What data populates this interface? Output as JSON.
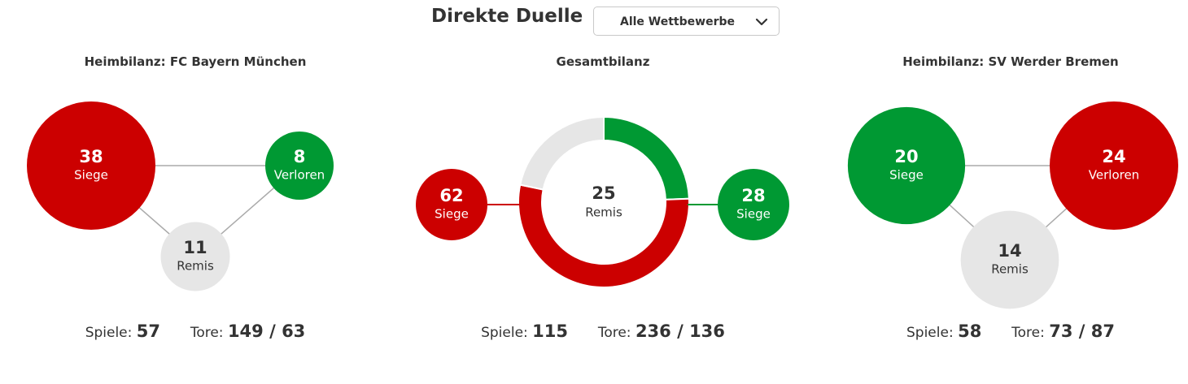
{
  "header": {
    "title": "Direkte Duelle",
    "filter_value": "Alle Wettbewerbe"
  },
  "colors": {
    "win": "#cc0000",
    "green": "#009933",
    "draw": "#e6e6e6",
    "connector": "#aaaaaa",
    "text_dark": "#333333"
  },
  "panels": {
    "left": {
      "title": "Heimbilanz: FC Bayern München",
      "spiele_label": "Spiele:",
      "spiele": "57",
      "tore_label": "Tore:",
      "tore": "149 / 63"
    },
    "center": {
      "title": "Gesamtbilanz",
      "spiele_label": "Spiele:",
      "spiele": "115",
      "tore_label": "Tore:",
      "tore": "236 / 136"
    },
    "right": {
      "title": "Heimbilanz: SV Werder Bremen",
      "spiele_label": "Spiele:",
      "spiele": "58",
      "tore_label": "Tore:",
      "tore": "73 / 87"
    }
  },
  "chart_data": [
    {
      "type": "bubble",
      "title": "Heimbilanz: FC Bayern München",
      "values": [
        {
          "label": "Siege",
          "value": 38,
          "color": "#cc0000"
        },
        {
          "label": "Verloren",
          "value": 8,
          "color": "#009933"
        },
        {
          "label": "Remis",
          "value": 11,
          "color": "#e6e6e6"
        }
      ]
    },
    {
      "type": "pie",
      "title": "Gesamtbilanz",
      "values": [
        {
          "label": "Siege",
          "value": 62,
          "color": "#cc0000"
        },
        {
          "label": "Siege",
          "value": 28,
          "color": "#009933"
        },
        {
          "label": "Remis",
          "value": 25,
          "color": "#e6e6e6"
        }
      ]
    },
    {
      "type": "bubble",
      "title": "Heimbilanz: SV Werder Bremen",
      "values": [
        {
          "label": "Siege",
          "value": 20,
          "color": "#009933"
        },
        {
          "label": "Verloren",
          "value": 24,
          "color": "#cc0000"
        },
        {
          "label": "Remis",
          "value": 14,
          "color": "#e6e6e6"
        }
      ]
    }
  ]
}
